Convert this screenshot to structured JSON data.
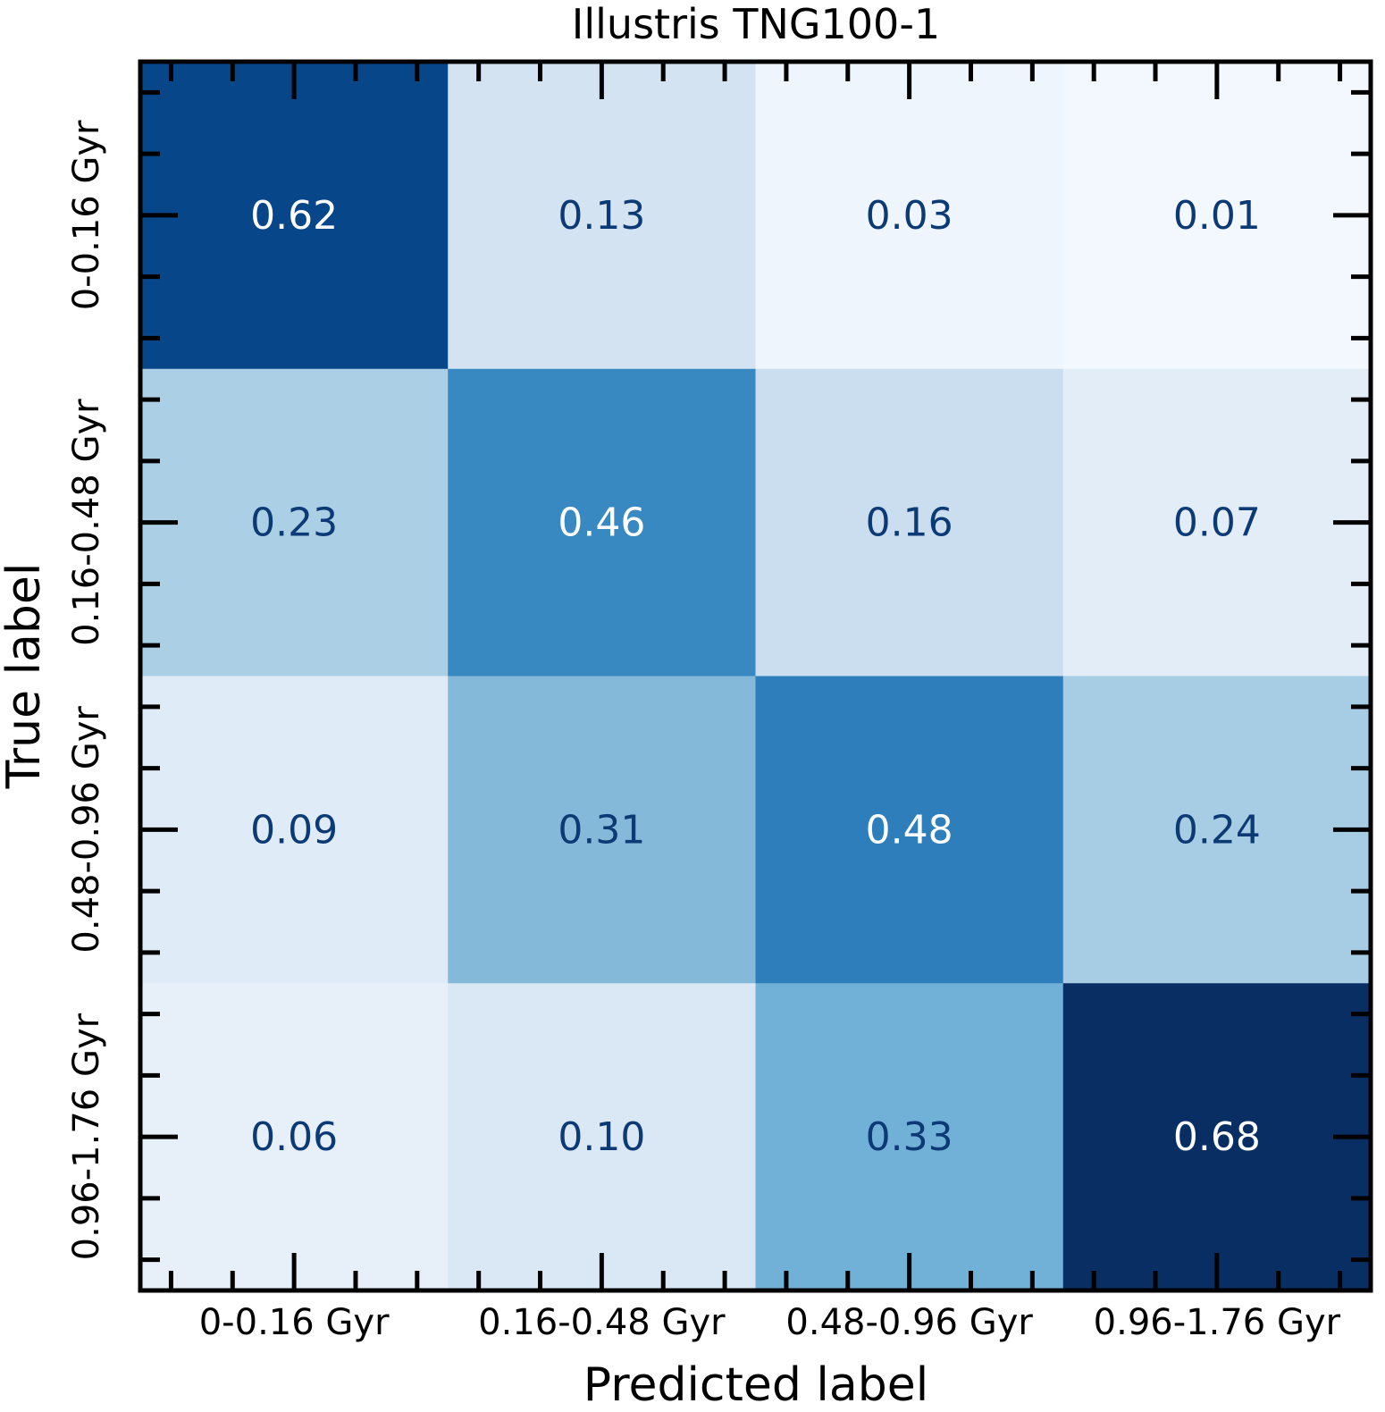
{
  "chart_data": {
    "type": "heatmap",
    "title": "Illustris TNG100-1",
    "xlabel": "Predicted label",
    "ylabel": "True label",
    "x_categories": [
      "0-0.16 Gyr",
      "0.16-0.48 Gyr",
      "0.48-0.96 Gyr",
      "0.96-1.76 Gyr"
    ],
    "y_categories": [
      "0-0.16 Gyr",
      "0.16-0.48 Gyr",
      "0.48-0.96 Gyr",
      "0.96-1.76 Gyr"
    ],
    "values": [
      [
        0.62,
        0.13,
        0.03,
        0.01
      ],
      [
        0.23,
        0.46,
        0.16,
        0.07
      ],
      [
        0.09,
        0.31,
        0.48,
        0.24
      ],
      [
        0.06,
        0.1,
        0.33,
        0.68
      ]
    ],
    "value_labels": [
      [
        "0.62",
        "0.13",
        "0.03",
        "0.01"
      ],
      [
        "0.23",
        "0.46",
        "0.16",
        "0.07"
      ],
      [
        "0.09",
        "0.31",
        "0.48",
        "0.24"
      ],
      [
        "0.06",
        "0.10",
        "0.33",
        "0.68"
      ]
    ],
    "colormap": "Blues",
    "colors": {
      "cell_fills": [
        [
          "#08468a",
          "#d4e3f2",
          "#eff5fd",
          "#f3f8fe"
        ],
        [
          "#abd0e6",
          "#3888c1",
          "#cbdeef",
          "#e3edf8"
        ],
        [
          "#dfebf7",
          "#84b9da",
          "#2e7ebc",
          "#a6cde4"
        ],
        [
          "#e7f0f9",
          "#dae8f5",
          "#72b1d7",
          "#092e63"
        ]
      ],
      "dark_text": "#0b3a75",
      "light_text": "#ffffff",
      "frame": "#000000"
    },
    "grid": false,
    "legend": "none"
  }
}
